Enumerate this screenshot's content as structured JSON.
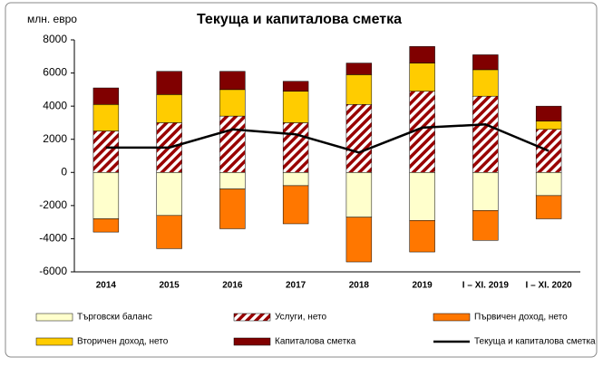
{
  "chart_data": {
    "type": "bar",
    "title": "Текуща и капиталова сметка",
    "y_label": "млн. евро",
    "categories": [
      "2014",
      "2015",
      "2016",
      "2017",
      "2018",
      "2019",
      "I – XI. 2019",
      "I – XI. 2020"
    ],
    "series": [
      {
        "name": "Търговски баланс",
        "color": "#ffffcc",
        "values": [
          -2800,
          -2600,
          -1000,
          -800,
          -2700,
          -2900,
          -2300,
          -1400
        ]
      },
      {
        "name": "Услуги, нето",
        "color": "#990000",
        "hatch": true,
        "values": [
          2500,
          3000,
          3400,
          3000,
          4100,
          4900,
          4600,
          2600
        ]
      },
      {
        "name": "Първичен доход, нето",
        "color": "#ff7700",
        "values": [
          -800,
          -2000,
          -2400,
          -2300,
          -2700,
          -1900,
          -1800,
          -1400
        ]
      },
      {
        "name": "Вторичен доход, нето",
        "color": "#ffcc00",
        "values": [
          1600,
          1700,
          1600,
          1900,
          1800,
          1700,
          1600,
          500
        ]
      },
      {
        "name": "Капиталова сметка",
        "color": "#800000",
        "values": [
          1000,
          1400,
          1100,
          600,
          700,
          1000,
          900,
          900
        ]
      },
      {
        "name": "Текуща и капиталова сметка",
        "color": "#000000",
        "type": "line",
        "values": [
          1500,
          1500,
          2600,
          2300,
          1200,
          2700,
          2900,
          1300
        ]
      }
    ],
    "ylim": [
      -6000,
      8000
    ],
    "yticks": [
      -6000,
      -4000,
      -2000,
      0,
      2000,
      4000,
      6000,
      8000
    ],
    "grid": false
  }
}
